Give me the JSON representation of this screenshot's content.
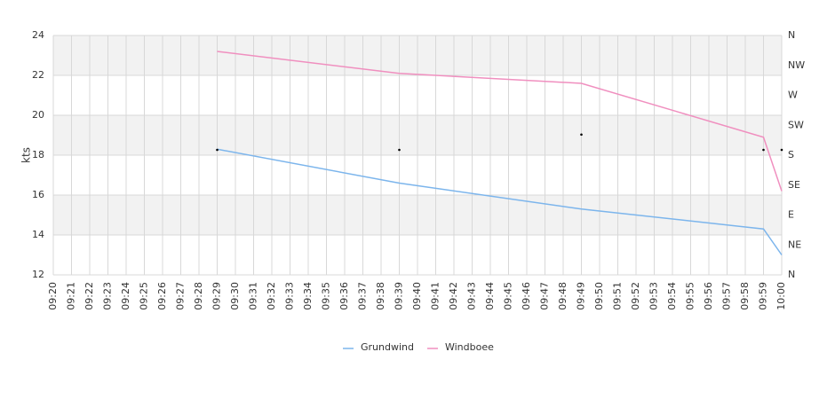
{
  "chart_data": {
    "type": "line",
    "y_label": "kts",
    "categories": [
      "09:20",
      "09:21",
      "09:22",
      "09:23",
      "09:24",
      "09:25",
      "09:26",
      "09:27",
      "09:28",
      "09:29",
      "09:30",
      "09:31",
      "09:32",
      "09:33",
      "09:34",
      "09:35",
      "09:36",
      "09:37",
      "09:38",
      "09:39",
      "09:40",
      "09:41",
      "09:42",
      "09:43",
      "09:44",
      "09:45",
      "09:46",
      "09:47",
      "09:48",
      "09:49",
      "09:50",
      "09:51",
      "09:52",
      "09:53",
      "09:54",
      "09:55",
      "09:56",
      "09:57",
      "09:58",
      "09:59",
      "10:00"
    ],
    "ylim": [
      12,
      24
    ],
    "yticks": [
      12,
      14,
      16,
      18,
      20,
      22,
      24
    ],
    "y2lim": [
      0,
      360
    ],
    "y2ticks": [
      {
        "value": 0,
        "label": "N"
      },
      {
        "value": 45,
        "label": "NE"
      },
      {
        "value": 90,
        "label": "E"
      },
      {
        "value": 135,
        "label": "SE"
      },
      {
        "value": 180,
        "label": "S"
      },
      {
        "value": 225,
        "label": "SW"
      },
      {
        "value": 270,
        "label": "W"
      },
      {
        "value": 315,
        "label": "NW"
      },
      {
        "value": 360,
        "label": "N"
      }
    ],
    "grid": true,
    "legend": "bottom",
    "series": [
      {
        "name": "Grundwind",
        "color": "#7cb5ec",
        "x": [
          "09:29",
          "09:39",
          "09:49",
          "09:59",
          "10:00"
        ],
        "values": [
          18.3,
          16.6,
          15.3,
          14.3,
          13.0
        ]
      },
      {
        "name": "Windboee",
        "color": "#f08fbf",
        "x": [
          "09:29",
          "09:39",
          "09:49",
          "09:59",
          "10:00"
        ],
        "values": [
          23.2,
          22.1,
          21.6,
          18.9,
          16.2
        ]
      },
      {
        "type": "scatter",
        "axis": "y2",
        "color": "#000000",
        "x": [
          "09:29",
          "09:39",
          "09:49",
          "09:59",
          "10:00"
        ],
        "values": [
          188,
          188,
          211,
          188,
          188
        ]
      }
    ]
  }
}
